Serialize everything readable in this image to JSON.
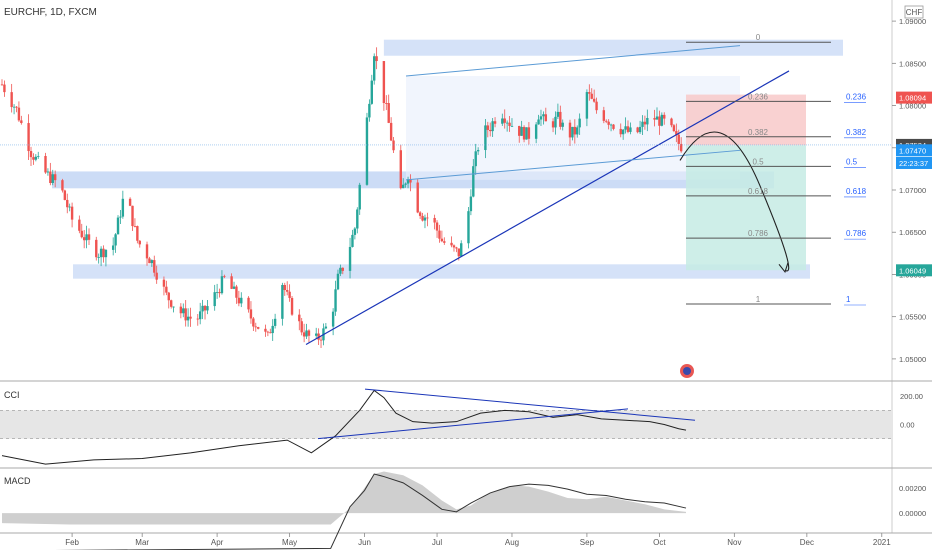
{
  "symbol_label": "EURCHF, 1D, FXCM",
  "currency": "CHF",
  "price_axis": {
    "ylim": [
      1.0475,
      1.0925
    ],
    "ticks": [
      {
        "value": 1.09,
        "label": "1.09000"
      },
      {
        "value": 1.085,
        "label": "1.08500"
      },
      {
        "value": 1.08,
        "label": "1.08000"
      },
      {
        "value": 1.075,
        "label": "1.07500"
      },
      {
        "value": 1.07,
        "label": "1.07000"
      },
      {
        "value": 1.065,
        "label": "1.06500"
      },
      {
        "value": 1.06,
        "label": "1.06000"
      },
      {
        "value": 1.055,
        "label": "1.05500"
      },
      {
        "value": 1.05,
        "label": "1.05000"
      }
    ],
    "badges": [
      {
        "value": 1.08094,
        "label": "1.08094",
        "color": "#ef5350"
      },
      {
        "value": 1.07534,
        "label": "1.07534",
        "color": "#4a4a4a"
      },
      {
        "value": 1.0747,
        "label": "1.07470",
        "color": "#2196f3"
      },
      {
        "value": 1.0732,
        "label": "22:23:37",
        "color": "#2196f3"
      },
      {
        "value": 1.06049,
        "label": "1.06049",
        "color": "#26a69a"
      }
    ]
  },
  "time_axis": {
    "ticks": [
      {
        "day": 31,
        "label": "Feb"
      },
      {
        "day": 60,
        "label": "Mar"
      },
      {
        "day": 91,
        "label": "Apr"
      },
      {
        "day": 121,
        "label": "May"
      },
      {
        "day": 152,
        "label": "Jun"
      },
      {
        "day": 182,
        "label": "Jul"
      },
      {
        "day": 213,
        "label": "Aug"
      },
      {
        "day": 244,
        "label": "Sep"
      },
      {
        "day": 274,
        "label": "Oct"
      },
      {
        "day": 305,
        "label": "Nov"
      },
      {
        "day": 335,
        "label": "Dec"
      },
      {
        "day": 366,
        "label": "2021"
      }
    ]
  },
  "fib_levels": [
    {
      "ratio": "0",
      "value": 1.0875,
      "right_label": ""
    },
    {
      "ratio": "0.236",
      "value": 1.0805,
      "right_label": "0.236"
    },
    {
      "ratio": "0.382",
      "value": 1.0763,
      "right_label": "0.382"
    },
    {
      "ratio": "0.5",
      "value": 1.0728,
      "right_label": "0.5"
    },
    {
      "ratio": "0.618",
      "value": 1.0693,
      "right_label": "0.618"
    },
    {
      "ratio": "0.786",
      "value": 1.0643,
      "right_label": "0.786"
    },
    {
      "ratio": "1",
      "value": 1.0565,
      "right_label": "1"
    }
  ],
  "indicators": {
    "cci": {
      "label": "CCI",
      "ylim": [
        -300,
        300
      ],
      "ticks": [
        {
          "value": 200,
          "label": "200.00"
        },
        {
          "value": 0,
          "label": "0.00"
        }
      ],
      "band": [
        100,
        -100
      ]
    },
    "macd": {
      "label": "MACD",
      "ylim": [
        -0.0015,
        0.0035
      ],
      "ticks": [
        {
          "value": 0.002,
          "label": "0.00200"
        },
        {
          "value": 0,
          "label": "0.00000"
        }
      ]
    }
  },
  "colors": {
    "bull": "#26a69a",
    "bear": "#ef5350",
    "trendline": "#1a35b8",
    "channel": "#5b9bd5",
    "zone": "#c7d8f5",
    "stop_zone": "#f8c9c9",
    "target_zone": "#c5ebe4",
    "axis_text": "#555555",
    "fib_line": "#555555",
    "fib_label": "#2962ff"
  },
  "chart_data": {
    "type": "candlestick",
    "x_unit": "day of 2020",
    "price_path": [
      [
        2,
        1.0825
      ],
      [
        8,
        1.0795
      ],
      [
        14,
        1.0745
      ],
      [
        20,
        1.072
      ],
      [
        26,
        1.0705
      ],
      [
        31,
        1.0665
      ],
      [
        37,
        1.064
      ],
      [
        42,
        1.0625
      ],
      [
        48,
        1.0635
      ],
      [
        53,
        1.07
      ],
      [
        58,
        1.064
      ],
      [
        64,
        1.0615
      ],
      [
        70,
        1.0575
      ],
      [
        76,
        1.0555
      ],
      [
        82,
        1.0545
      ],
      [
        88,
        1.0565
      ],
      [
        94,
        1.0595
      ],
      [
        100,
        1.057
      ],
      [
        106,
        1.0545
      ],
      [
        112,
        1.0525
      ],
      [
        115,
        1.0555
      ],
      [
        118,
        1.059
      ],
      [
        121,
        1.0565
      ],
      [
        126,
        1.0535
      ],
      [
        131,
        1.052
      ],
      [
        134,
        1.0528
      ],
      [
        138,
        1.0545
      ],
      [
        141,
        1.0595
      ],
      [
        144,
        1.0615
      ],
      [
        148,
        1.0655
      ],
      [
        151,
        1.073
      ],
      [
        154,
        1.081
      ],
      [
        156,
        1.0865
      ],
      [
        158,
        1.0835
      ],
      [
        161,
        1.0795
      ],
      [
        164,
        1.0745
      ],
      [
        167,
        1.0695
      ],
      [
        170,
        1.072
      ],
      [
        173,
        1.0685
      ],
      [
        176,
        1.067
      ],
      [
        180,
        1.0665
      ],
      [
        184,
        1.064
      ],
      [
        188,
        1.063
      ],
      [
        191,
        1.0625
      ],
      [
        194,
        1.065
      ],
      [
        197,
        1.0725
      ],
      [
        200,
        1.0765
      ],
      [
        204,
        1.0775
      ],
      [
        208,
        1.0795
      ],
      [
        212,
        1.078
      ],
      [
        216,
        1.077
      ],
      [
        220,
        1.0765
      ],
      [
        224,
        1.079
      ],
      [
        228,
        1.0775
      ],
      [
        232,
        1.0785
      ],
      [
        236,
        1.0765
      ],
      [
        240,
        1.077
      ],
      [
        244,
        1.0815
      ],
      [
        248,
        1.0795
      ],
      [
        252,
        1.0785
      ],
      [
        256,
        1.0775
      ],
      [
        260,
        1.077
      ],
      [
        264,
        1.0765
      ],
      [
        268,
        1.078
      ],
      [
        272,
        1.0785
      ],
      [
        276,
        1.078
      ],
      [
        279,
        1.077
      ],
      [
        282,
        1.0755
      ],
      [
        285,
        1.0747
      ]
    ],
    "cci_line": [
      [
        2,
        -220
      ],
      [
        20,
        -280
      ],
      [
        40,
        -250
      ],
      [
        60,
        -240
      ],
      [
        80,
        -200
      ],
      [
        100,
        -150
      ],
      [
        120,
        -110
      ],
      [
        130,
        -200
      ],
      [
        140,
        -80
      ],
      [
        150,
        100
      ],
      [
        156,
        240
      ],
      [
        160,
        190
      ],
      [
        165,
        80
      ],
      [
        172,
        20
      ],
      [
        180,
        10
      ],
      [
        190,
        20
      ],
      [
        200,
        80
      ],
      [
        210,
        100
      ],
      [
        220,
        90
      ],
      [
        230,
        50
      ],
      [
        240,
        70
      ],
      [
        250,
        40
      ],
      [
        260,
        30
      ],
      [
        270,
        20
      ],
      [
        276,
        0
      ],
      [
        282,
        -30
      ],
      [
        285,
        -40
      ]
    ],
    "macd_hist": [
      [
        2,
        -0.0008
      ],
      [
        30,
        -0.0009
      ],
      [
        60,
        -0.0009
      ],
      [
        90,
        -0.0009
      ],
      [
        120,
        -0.0009
      ],
      [
        138,
        -0.0009
      ],
      [
        146,
        0.0004
      ],
      [
        152,
        0.002
      ],
      [
        156,
        0.0031
      ],
      [
        160,
        0.0033
      ],
      [
        168,
        0.003
      ],
      [
        176,
        0.0022
      ],
      [
        184,
        0.001
      ],
      [
        190,
        0.0003
      ],
      [
        196,
        0.0006
      ],
      [
        202,
        0.0014
      ],
      [
        208,
        0.0019
      ],
      [
        214,
        0.0022
      ],
      [
        220,
        0.0021
      ],
      [
        228,
        0.0017
      ],
      [
        236,
        0.0012
      ],
      [
        244,
        0.0011
      ],
      [
        252,
        0.0013
      ],
      [
        260,
        0.001
      ],
      [
        268,
        0.0007
      ],
      [
        276,
        0.0003
      ],
      [
        285,
        0.0001
      ]
    ],
    "macd_line": [
      [
        2,
        -0.003
      ],
      [
        138,
        -0.0028
      ],
      [
        146,
        0.0005
      ],
      [
        152,
        0.0018
      ],
      [
        156,
        0.0031
      ],
      [
        160,
        0.0029
      ],
      [
        168,
        0.0024
      ],
      [
        176,
        0.0014
      ],
      [
        184,
        0.0003
      ],
      [
        190,
        0.0001
      ],
      [
        196,
        0.0008
      ],
      [
        204,
        0.0016
      ],
      [
        212,
        0.0021
      ],
      [
        220,
        0.0023
      ],
      [
        228,
        0.0022
      ],
      [
        236,
        0.0019
      ],
      [
        244,
        0.0015
      ],
      [
        252,
        0.0014
      ],
      [
        260,
        0.0011
      ],
      [
        268,
        0.0009
      ],
      [
        276,
        0.0008
      ],
      [
        285,
        0.0004
      ]
    ]
  }
}
